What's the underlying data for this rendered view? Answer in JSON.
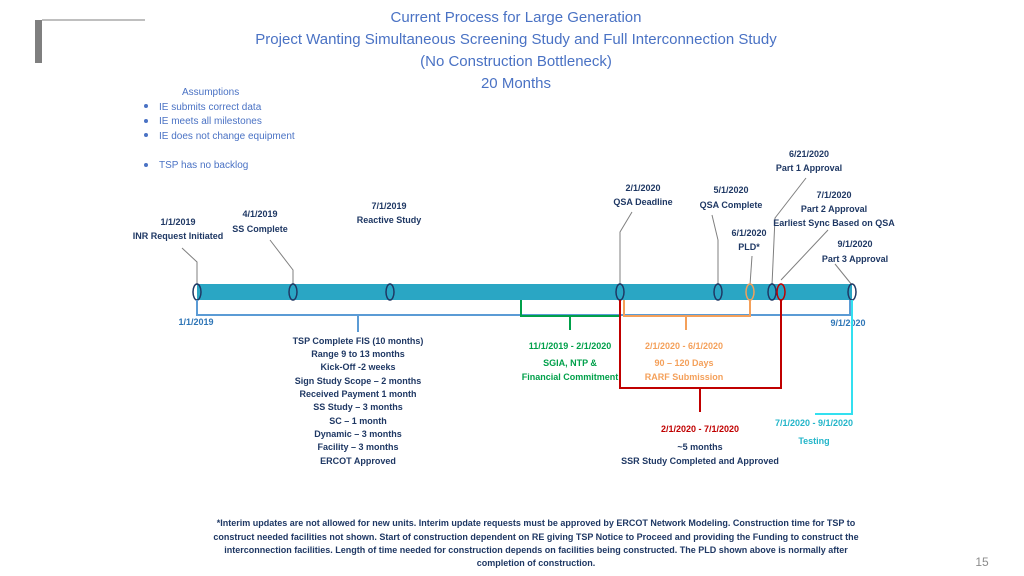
{
  "header": {
    "title_lines": [
      "Current Process for Large Generation",
      "Project Wanting  Simultaneous Screening Study and Full Interconnection Study",
      "(No Construction Bottleneck)",
      "20 Months"
    ]
  },
  "assumptions": {
    "heading": "Assumptions",
    "items": [
      "IE submits correct data",
      "IE meets all milestones",
      "IE does not change equipment",
      "TSP has no backlog"
    ]
  },
  "milestones": [
    {
      "date": "1/1/2019",
      "label": "INR Request Initiated"
    },
    {
      "date": "4/1/2019",
      "label": "SS Complete"
    },
    {
      "date": "7/1/2019",
      "label": "Reactive Study"
    },
    {
      "date": "2/1/2020",
      "label": "QSA Deadline"
    },
    {
      "date": "5/1/2020",
      "label": "QSA Complete"
    },
    {
      "date": "6/1/2020",
      "label": "PLD*"
    },
    {
      "date": "6/21/2020",
      "label": "Part 1 Approval"
    },
    {
      "date": "7/1/2020",
      "label": "Part 2 Approval",
      "note": "Earliest Sync Based on QSA"
    },
    {
      "date": "9/1/2020",
      "label": "Part 3 Approval"
    }
  ],
  "timeline": {
    "start": "1/1/2019",
    "end": "9/1/2020"
  },
  "phases": [
    {
      "lines": [
        "TSP Complete FIS (10 months)",
        "Range 9 to 13 months",
        "Kick-Off -2 weeks",
        "Sign Study Scope – 2 months",
        "Received Payment 1 month",
        "SS Study – 3 months",
        "SC – 1 month",
        "Dynamic – 3 months",
        "Facility – 3 months",
        "ERCOT Approved"
      ]
    },
    {
      "range": "11/1/2019 - 2/1/2020",
      "lines": [
        "SGIA, NTP &",
        "Financial Commitment"
      ]
    },
    {
      "range": "2/1/2020 - 6/1/2020",
      "lines": [
        "90 – 120 Days",
        "RARF Submission"
      ]
    },
    {
      "range": "2/1/2020 - 7/1/2020",
      "lines": [
        "~5 months",
        "SSR Study Completed and Approved"
      ]
    },
    {
      "range": "7/1/2020 - 9/1/2020",
      "lines": [
        "Testing"
      ]
    }
  ],
  "footnote": [
    "*Interim updates are not allowed for new units. Interim update requests must be approved by ERCOT Network Modeling.  Construction time for TSP to",
    "construct needed facilities not shown.  Start of construction dependent on RE giving TSP Notice to Proceed and providing the Funding to construct the",
    "interconnection facilities.  Length of time needed for construction depends on facilities being constructed.  The PLD shown above is normally after",
    "completion of construction."
  ],
  "page_number": "15"
}
